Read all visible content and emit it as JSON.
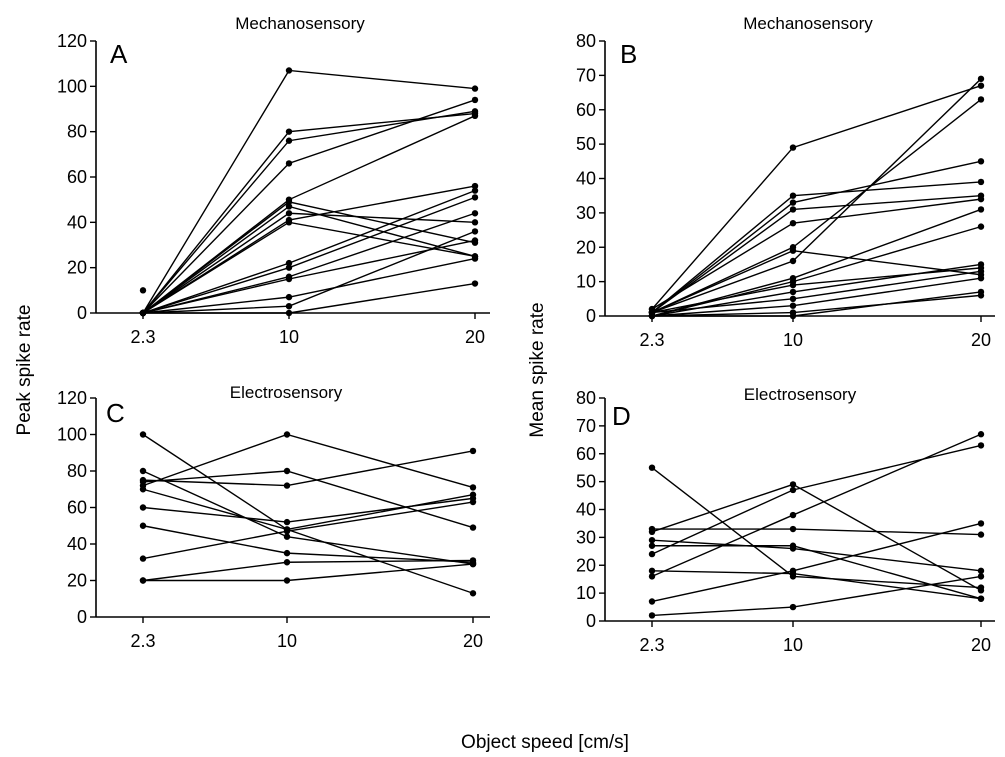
{
  "figure": {
    "ylabel_left": "Peak spike rate",
    "ylabel_right": "Mean spike rate",
    "xlabel": "Object speed [cm/s]"
  },
  "chart_data": [
    {
      "panel": "A",
      "title": "Mechanosensory",
      "type": "line",
      "x": [
        "2.3",
        "10",
        "20"
      ],
      "ylim": [
        0,
        120
      ],
      "yticks": [
        0,
        20,
        40,
        60,
        80,
        100,
        120
      ],
      "series": [
        {
          "values": [
            0,
            107,
            99
          ]
        },
        {
          "values": [
            0,
            80,
            88
          ]
        },
        {
          "values": [
            0,
            76,
            89
          ]
        },
        {
          "values": [
            0,
            66,
            94
          ]
        },
        {
          "values": [
            0,
            50,
            87
          ]
        },
        {
          "values": [
            0,
            49,
            31
          ]
        },
        {
          "values": [
            0,
            47,
            25
          ]
        },
        {
          "values": [
            0,
            44,
            40
          ]
        },
        {
          "values": [
            0,
            41,
            56
          ]
        },
        {
          "values": [
            0,
            40,
            25
          ]
        },
        {
          "values": [
            0,
            22,
            54
          ]
        },
        {
          "values": [
            0,
            20,
            51
          ]
        },
        {
          "values": [
            0,
            16,
            44
          ]
        },
        {
          "values": [
            0,
            15,
            32
          ]
        },
        {
          "values": [
            0,
            7,
            24
          ]
        },
        {
          "values": [
            0,
            3,
            36
          ]
        },
        {
          "values": [
            0,
            0,
            13
          ]
        },
        {
          "values": [
            10,
            0,
            0
          ],
          "points": [
            0
          ]
        }
      ]
    },
    {
      "panel": "B",
      "title": "Mechanosensory",
      "type": "line",
      "x": [
        "2.3",
        "10",
        "20"
      ],
      "ylim": [
        0,
        80
      ],
      "yticks": [
        0,
        10,
        20,
        30,
        40,
        50,
        60,
        70,
        80
      ],
      "series": [
        {
          "values": [
            2,
            49,
            67
          ]
        },
        {
          "values": [
            1,
            35,
            39
          ]
        },
        {
          "values": [
            1,
            33,
            45
          ]
        },
        {
          "values": [
            1,
            31,
            35
          ]
        },
        {
          "values": [
            2,
            27,
            34
          ]
        },
        {
          "values": [
            1,
            20,
            63
          ]
        },
        {
          "values": [
            1,
            19,
            12
          ]
        },
        {
          "values": [
            1,
            16,
            69
          ]
        },
        {
          "values": [
            0,
            11,
            31
          ]
        },
        {
          "values": [
            0,
            10,
            26
          ]
        },
        {
          "values": [
            1,
            9,
            14
          ]
        },
        {
          "values": [
            0,
            7,
            15
          ]
        },
        {
          "values": [
            1,
            5,
            13
          ]
        },
        {
          "values": [
            0,
            3,
            11
          ]
        },
        {
          "values": [
            0,
            1,
            6
          ]
        },
        {
          "values": [
            0,
            0,
            7
          ]
        }
      ]
    },
    {
      "panel": "C",
      "title": "Electrosensory",
      "type": "line",
      "x": [
        "2.3",
        "10",
        "20"
      ],
      "ylim": [
        0,
        120
      ],
      "yticks": [
        0,
        20,
        40,
        60,
        80,
        100,
        120
      ],
      "series": [
        {
          "values": [
            100,
            48,
            13
          ]
        },
        {
          "values": [
            80,
            44,
            29
          ]
        },
        {
          "values": [
            75,
            72,
            91
          ]
        },
        {
          "values": [
            74,
            80,
            49
          ]
        },
        {
          "values": [
            72,
            100,
            71
          ]
        },
        {
          "values": [
            70,
            48,
            67
          ]
        },
        {
          "values": [
            60,
            52,
            65
          ]
        },
        {
          "values": [
            50,
            35,
            30
          ]
        },
        {
          "values": [
            32,
            47,
            63
          ]
        },
        {
          "values": [
            20,
            30,
            31
          ]
        },
        {
          "values": [
            20,
            20,
            29
          ]
        }
      ]
    },
    {
      "panel": "D",
      "title": "Electrosensory",
      "type": "line",
      "x": [
        "2.3",
        "10",
        "20"
      ],
      "ylim": [
        0,
        80
      ],
      "yticks": [
        0,
        10,
        20,
        30,
        40,
        50,
        60,
        70,
        80
      ],
      "series": [
        {
          "values": [
            55,
            16,
            12
          ]
        },
        {
          "values": [
            33,
            33,
            31
          ]
        },
        {
          "values": [
            32,
            49,
            11
          ]
        },
        {
          "values": [
            29,
            26,
            18
          ]
        },
        {
          "values": [
            27,
            27,
            8
          ]
        },
        {
          "values": [
            24,
            47,
            63
          ]
        },
        {
          "values": [
            18,
            17,
            8
          ]
        },
        {
          "values": [
            16,
            38,
            67
          ]
        },
        {
          "values": [
            7,
            18,
            35
          ]
        },
        {
          "values": [
            2,
            5,
            16
          ]
        }
      ]
    }
  ]
}
